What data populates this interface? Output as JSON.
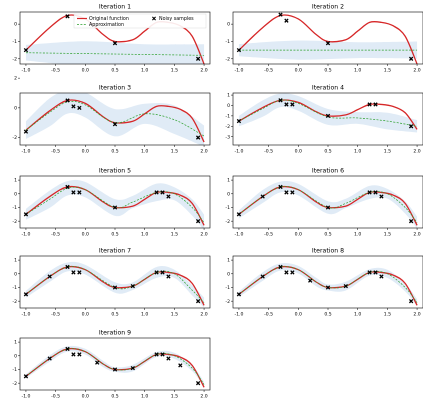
{
  "figure": {
    "legend": {
      "original": "Original function",
      "approx": "Approximation",
      "samples": "Noisy samples",
      "placement": "top-right of first panel"
    },
    "colors": {
      "truth": "#d62728",
      "approx": "#2ca02c",
      "band": "#dbe8f4",
      "points": "#000000"
    }
  },
  "chart_data": [
    {
      "type": "line",
      "title": "Iteration 1",
      "xlim": [
        -1.1,
        2.1
      ],
      "ylim": [
        -2.3,
        0.7
      ],
      "xticks": [
        "-1.0",
        "-0.5",
        "0.0",
        "0.5",
        "1.0",
        "1.5",
        "2.0"
      ],
      "yticks": [
        "0",
        "-1",
        "-2"
      ],
      "series": [
        {
          "name": "Original function",
          "x": [
            -1.0,
            -0.6,
            -0.3,
            0.0,
            0.3,
            0.5,
            0.8,
            1.0,
            1.2,
            1.4,
            1.6,
            1.8,
            2.0
          ],
          "y": [
            -1.5,
            -0.2,
            0.5,
            0.3,
            -0.6,
            -1.0,
            -0.9,
            -0.4,
            0.1,
            0.1,
            -0.1,
            -0.7,
            -2.3
          ]
        },
        {
          "name": "Approximation",
          "x": [
            -1.0,
            0.0,
            1.0,
            2.0
          ],
          "y": [
            -1.65,
            -1.7,
            -1.75,
            -1.8
          ]
        },
        {
          "name": "Noisy samples",
          "x": [
            -1.0,
            -0.3,
            0.5,
            1.9
          ],
          "y": [
            -1.5,
            0.45,
            -1.1,
            -2.0
          ]
        }
      ],
      "band_halfwidth": 0.45
    },
    {
      "type": "line",
      "title": "Iteration 2",
      "xlim": [
        -1.1,
        2.1
      ],
      "ylim": [
        -2.3,
        0.7
      ],
      "xticks": [
        "-1.0",
        "-0.5",
        "0.0",
        "0.5",
        "1.0",
        "1.5",
        "2.0"
      ],
      "yticks": [
        "0",
        "-1",
        "-2"
      ],
      "series": [
        {
          "name": "Original function",
          "x": [
            -1.0,
            -0.6,
            -0.3,
            0.0,
            0.3,
            0.5,
            0.8,
            1.0,
            1.2,
            1.4,
            1.6,
            1.8,
            2.0
          ],
          "y": [
            -1.5,
            -0.2,
            0.5,
            0.3,
            -0.6,
            -1.0,
            -0.9,
            -0.4,
            0.1,
            0.1,
            -0.1,
            -0.7,
            -2.3
          ]
        },
        {
          "name": "Approximation",
          "x": [
            -1.0,
            0.0,
            1.0,
            2.0
          ],
          "y": [
            -1.5,
            -1.5,
            -1.5,
            -1.5
          ]
        },
        {
          "name": "Noisy samples",
          "x": [
            -1.0,
            -0.3,
            -0.2,
            0.5,
            1.9
          ],
          "y": [
            -1.5,
            0.55,
            0.2,
            -1.1,
            -2.0
          ]
        }
      ],
      "band_halfwidth": 0.35
    },
    {
      "type": "line",
      "title": "Iteration 3",
      "xlim": [
        -1.1,
        2.1
      ],
      "ylim": [
        -2.5,
        1.0
      ],
      "xticks": [
        "-1.0",
        "-0.5",
        "0.0",
        "0.5",
        "1.0",
        "1.5",
        "2.0"
      ],
      "yticks": [
        "2",
        "0",
        "-2"
      ],
      "series": [
        {
          "name": "Original function",
          "x": [
            -1.0,
            -0.6,
            -0.3,
            0.0,
            0.3,
            0.5,
            0.8,
            1.0,
            1.2,
            1.4,
            1.6,
            1.8,
            2.0
          ],
          "y": [
            -1.5,
            -0.2,
            0.5,
            0.3,
            -0.6,
            -1.0,
            -0.9,
            -0.4,
            0.1,
            0.1,
            -0.1,
            -0.7,
            -2.3
          ]
        },
        {
          "name": "Approximation",
          "x": [
            -1.0,
            -0.6,
            -0.3,
            0.0,
            0.5,
            1.0,
            1.5,
            2.0
          ],
          "y": [
            -1.5,
            -0.3,
            0.4,
            0.2,
            -1.0,
            -0.4,
            -0.8,
            -1.9
          ]
        },
        {
          "name": "Noisy samples",
          "x": [
            -1.0,
            -0.3,
            -0.2,
            -0.1,
            0.5,
            1.9
          ],
          "y": [
            -1.6,
            0.5,
            0.1,
            0.0,
            -1.1,
            -2.0
          ]
        }
      ],
      "band_halfwidth": 0.6
    },
    {
      "type": "line",
      "title": "Iteration 4",
      "xlim": [
        -1.1,
        2.1
      ],
      "ylim": [
        -3.8,
        1.2
      ],
      "xticks": [
        "-1.0",
        "-0.5",
        "0.0",
        "0.5",
        "1.0",
        "1.5",
        "2.0"
      ],
      "yticks": [
        "1",
        "0",
        "-1",
        "-2",
        "-3"
      ],
      "series": [
        {
          "name": "Original function",
          "x": [
            -1.0,
            -0.6,
            -0.3,
            0.0,
            0.3,
            0.5,
            0.8,
            1.0,
            1.2,
            1.4,
            1.6,
            1.8,
            2.0
          ],
          "y": [
            -1.5,
            -0.2,
            0.5,
            0.3,
            -0.6,
            -1.0,
            -0.9,
            -0.4,
            0.1,
            0.1,
            -0.1,
            -0.7,
            -2.3
          ]
        },
        {
          "name": "Approximation",
          "x": [
            -1.0,
            -0.6,
            -0.3,
            0.0,
            0.5,
            1.0,
            1.5,
            2.0
          ],
          "y": [
            -1.5,
            -0.3,
            0.5,
            0.2,
            -1.1,
            -1.2,
            -1.5,
            -2.0
          ]
        },
        {
          "name": "Noisy samples",
          "x": [
            -1.0,
            -0.3,
            -0.2,
            -0.1,
            0.5,
            1.2,
            1.3,
            1.9
          ],
          "y": [
            -1.5,
            0.5,
            0.1,
            0.1,
            -1.0,
            0.1,
            0.1,
            -2.0
          ]
        }
      ],
      "band_halfwidth": 0.5
    },
    {
      "type": "line",
      "title": "Iteration 5",
      "xlim": [
        -1.1,
        2.1
      ],
      "ylim": [
        -2.5,
        1.3
      ],
      "xticks": [
        "-1.0",
        "-0.5",
        "0.0",
        "0.5",
        "1.0",
        "1.5",
        "2.0"
      ],
      "yticks": [
        "1",
        "0",
        "-1",
        "-2"
      ],
      "series": [
        {
          "name": "Original function",
          "x": [
            -1.0,
            -0.6,
            -0.3,
            0.0,
            0.3,
            0.5,
            0.8,
            1.0,
            1.2,
            1.4,
            1.6,
            1.8,
            2.0
          ],
          "y": [
            -1.5,
            -0.2,
            0.5,
            0.3,
            -0.6,
            -1.0,
            -0.9,
            -0.4,
            0.1,
            0.1,
            -0.1,
            -0.7,
            -2.3
          ]
        },
        {
          "name": "Approximation",
          "x": [
            -1.0,
            -0.6,
            -0.3,
            0.0,
            0.5,
            0.8,
            1.2,
            1.5,
            1.8,
            2.0
          ],
          "y": [
            -1.5,
            -0.4,
            0.4,
            0.3,
            -1.0,
            -0.6,
            0.1,
            0.0,
            -1.0,
            -2.1
          ]
        },
        {
          "name": "Noisy samples",
          "x": [
            -1.0,
            -0.3,
            -0.2,
            -0.1,
            0.5,
            1.2,
            1.3,
            1.4,
            1.9
          ],
          "y": [
            -1.5,
            0.5,
            0.1,
            0.1,
            -1.0,
            0.1,
            0.1,
            -0.2,
            -2.0
          ]
        }
      ],
      "band_halfwidth": 0.4
    },
    {
      "type": "line",
      "title": "Iteration 6",
      "xlim": [
        -1.1,
        2.1
      ],
      "ylim": [
        -2.5,
        1.3
      ],
      "xticks": [
        "-1.0",
        "-0.5",
        "0.0",
        "0.5",
        "1.0",
        "1.5",
        "2.0"
      ],
      "yticks": [
        "1",
        "0",
        "-1",
        "-2"
      ],
      "series": [
        {
          "name": "Original function",
          "x": [
            -1.0,
            -0.6,
            -0.3,
            0.0,
            0.3,
            0.5,
            0.8,
            1.0,
            1.2,
            1.4,
            1.6,
            1.8,
            2.0
          ],
          "y": [
            -1.5,
            -0.2,
            0.5,
            0.3,
            -0.6,
            -1.0,
            -0.9,
            -0.4,
            0.1,
            0.1,
            -0.1,
            -0.7,
            -2.3
          ]
        },
        {
          "name": "Approximation",
          "x": [
            -1.0,
            -0.6,
            -0.3,
            0.0,
            0.5,
            0.8,
            1.2,
            1.5,
            1.8,
            2.0
          ],
          "y": [
            -1.5,
            -0.2,
            0.5,
            0.3,
            -1.0,
            -0.7,
            0.1,
            0.0,
            -1.0,
            -2.1
          ]
        },
        {
          "name": "Noisy samples",
          "x": [
            -1.0,
            -0.6,
            -0.3,
            -0.2,
            -0.1,
            0.5,
            1.2,
            1.3,
            1.4,
            1.9
          ],
          "y": [
            -1.5,
            -0.2,
            0.5,
            0.1,
            0.1,
            -1.0,
            0.1,
            0.1,
            -0.2,
            -2.0
          ]
        }
      ],
      "band_halfwidth": 0.3
    },
    {
      "type": "line",
      "title": "Iteration 7",
      "xlim": [
        -1.1,
        2.1
      ],
      "ylim": [
        -2.5,
        1.3
      ],
      "xticks": [
        "-1.0",
        "-0.5",
        "0.0",
        "0.5",
        "1.0",
        "1.5",
        "2.0"
      ],
      "yticks": [
        "1",
        "0",
        "-1",
        "-2"
      ],
      "series": [
        {
          "name": "Original function",
          "x": [
            -1.0,
            -0.6,
            -0.3,
            0.0,
            0.3,
            0.5,
            0.8,
            1.0,
            1.2,
            1.4,
            1.6,
            1.8,
            2.0
          ],
          "y": [
            -1.5,
            -0.2,
            0.5,
            0.3,
            -0.6,
            -1.0,
            -0.9,
            -0.4,
            0.1,
            0.1,
            -0.1,
            -0.7,
            -2.3
          ]
        },
        {
          "name": "Approximation",
          "x": [
            -1.0,
            -0.6,
            -0.3,
            0.0,
            0.5,
            0.8,
            1.2,
            1.5,
            1.8,
            2.0
          ],
          "y": [
            -1.5,
            -0.2,
            0.5,
            0.3,
            -1.0,
            -0.9,
            0.1,
            0.0,
            -1.2,
            -2.1
          ]
        },
        {
          "name": "Noisy samples",
          "x": [
            -1.0,
            -0.6,
            -0.3,
            -0.2,
            -0.1,
            0.5,
            0.8,
            1.2,
            1.3,
            1.4,
            1.9
          ],
          "y": [
            -1.5,
            -0.2,
            0.5,
            0.1,
            0.1,
            -1.0,
            -0.9,
            0.1,
            0.1,
            -0.2,
            -2.0
          ]
        }
      ],
      "band_halfwidth": 0.25
    },
    {
      "type": "line",
      "title": "Iteration 8",
      "xlim": [
        -1.1,
        2.1
      ],
      "ylim": [
        -2.5,
        1.3
      ],
      "xticks": [
        "-1.0",
        "-0.5",
        "0.0",
        "0.5",
        "1.0",
        "1.5",
        "2.0"
      ],
      "yticks": [
        "1",
        "0",
        "-1",
        "-2"
      ],
      "series": [
        {
          "name": "Original function",
          "x": [
            -1.0,
            -0.6,
            -0.3,
            0.0,
            0.3,
            0.5,
            0.8,
            1.0,
            1.2,
            1.4,
            1.6,
            1.8,
            2.0
          ],
          "y": [
            -1.5,
            -0.2,
            0.5,
            0.3,
            -0.6,
            -1.0,
            -0.9,
            -0.4,
            0.1,
            0.1,
            -0.1,
            -0.7,
            -2.3
          ]
        },
        {
          "name": "Approximation",
          "x": [
            -1.0,
            -0.6,
            -0.3,
            0.0,
            0.3,
            0.5,
            0.8,
            1.2,
            1.5,
            1.8,
            2.0
          ],
          "y": [
            -1.5,
            -0.2,
            0.5,
            0.3,
            -0.6,
            -1.0,
            -0.9,
            0.1,
            0.0,
            -1.0,
            -2.1
          ]
        },
        {
          "name": "Noisy samples",
          "x": [
            -1.0,
            -0.6,
            -0.3,
            -0.2,
            -0.1,
            0.2,
            0.5,
            0.8,
            1.2,
            1.3,
            1.4,
            1.9
          ],
          "y": [
            -1.5,
            -0.2,
            0.5,
            0.1,
            0.1,
            -0.5,
            -1.0,
            -0.9,
            0.1,
            0.1,
            -0.2,
            -2.0
          ]
        }
      ],
      "band_halfwidth": 0.2
    },
    {
      "type": "line",
      "title": "Iteration 9",
      "xlim": [
        -1.1,
        2.1
      ],
      "ylim": [
        -2.5,
        1.3
      ],
      "xticks": [
        "-1.0",
        "-0.5",
        "0.0",
        "0.5",
        "1.0",
        "1.5",
        "2.0"
      ],
      "yticks": [
        "1",
        "0",
        "-1",
        "-2"
      ],
      "series": [
        {
          "name": "Original function",
          "x": [
            -1.0,
            -0.6,
            -0.3,
            0.0,
            0.3,
            0.5,
            0.8,
            1.0,
            1.2,
            1.4,
            1.6,
            1.8,
            2.0
          ],
          "y": [
            -1.5,
            -0.2,
            0.5,
            0.3,
            -0.6,
            -1.0,
            -0.9,
            -0.4,
            0.1,
            0.1,
            -0.1,
            -0.7,
            -2.3
          ]
        },
        {
          "name": "Approximation",
          "x": [
            -1.0,
            -0.6,
            -0.3,
            0.0,
            0.3,
            0.5,
            0.8,
            1.2,
            1.5,
            1.8,
            2.0
          ],
          "y": [
            -1.5,
            -0.2,
            0.5,
            0.3,
            -0.6,
            -1.0,
            -0.9,
            0.1,
            0.0,
            -0.9,
            -2.1
          ]
        },
        {
          "name": "Noisy samples",
          "x": [
            -1.0,
            -0.6,
            -0.3,
            -0.2,
            -0.1,
            0.2,
            0.5,
            0.8,
            1.2,
            1.3,
            1.4,
            1.6,
            1.9
          ],
          "y": [
            -1.5,
            -0.2,
            0.5,
            0.1,
            0.1,
            -0.5,
            -1.0,
            -0.9,
            0.1,
            0.1,
            -0.2,
            -0.7,
            -2.0
          ]
        }
      ],
      "band_halfwidth": 0.15
    }
  ]
}
